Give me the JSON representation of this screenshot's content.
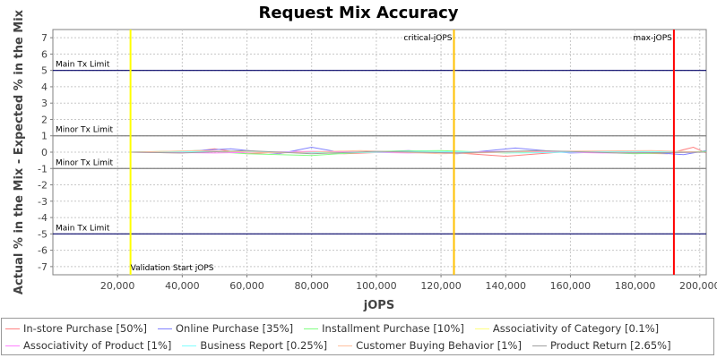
{
  "chart_data": {
    "type": "line",
    "title": "Request Mix Accuracy",
    "xlabel": "jOPS",
    "ylabel": "Actual % in the Mix - Expected % in the Mix",
    "xlim": [
      0,
      202000
    ],
    "ylim": [
      -7.5,
      7.5
    ],
    "x_ticks": [
      "20,000",
      "40,000",
      "60,000",
      "80,000",
      "100,000",
      "120,000",
      "140,000",
      "160,000",
      "180,000",
      "200,000"
    ],
    "x_tick_values": [
      20000,
      40000,
      60000,
      80000,
      100000,
      120000,
      140000,
      160000,
      180000,
      200000
    ],
    "y_ticks": [
      "7",
      "6",
      "5",
      "4",
      "3",
      "2",
      "1",
      "0",
      "-1",
      "-2",
      "-3",
      "-4",
      "-5",
      "-6",
      "-7"
    ],
    "y_tick_values": [
      7,
      6,
      5,
      4,
      3,
      2,
      1,
      0,
      -1,
      -2,
      -3,
      -4,
      -5,
      -6,
      -7
    ],
    "grid": true,
    "legend_position": "bottom",
    "horizontal_lines": [
      {
        "label": "Main Tx Limit",
        "y": 5,
        "color": "#000066"
      },
      {
        "label": "Minor Tx Limit",
        "y": 1,
        "color": "#808080"
      },
      {
        "label": "Minor Tx Limit",
        "y": -1,
        "color": "#808080"
      },
      {
        "label": "Main Tx Limit",
        "y": -5,
        "color": "#000066"
      }
    ],
    "vertical_lines": [
      {
        "label": "Validation Start jOPS",
        "x": 24000,
        "color": "#ffff00",
        "label_pos": "bottom"
      },
      {
        "label": "critical-jOPS",
        "x": 124000,
        "color": "#ffc000",
        "label_pos": "top"
      },
      {
        "label": "max-jOPS",
        "x": 192000,
        "color": "#ff0000",
        "label_pos": "top"
      }
    ],
    "series": [
      {
        "name": "In-store Purchase [50%]",
        "color": "#ff8080",
        "x": [
          24000,
          40000,
          50000,
          60000,
          75000,
          90000,
          110000,
          125000,
          140000,
          160000,
          175000,
          190000,
          198000,
          202000
        ],
        "y": [
          0,
          -0.05,
          0.2,
          -0.1,
          0.05,
          -0.1,
          0.05,
          -0.05,
          -0.25,
          0.05,
          -0.05,
          -0.1,
          0.3,
          -0.05
        ]
      },
      {
        "name": "Online Purchase [35%]",
        "color": "#8080ff",
        "x": [
          24000,
          40000,
          55000,
          70000,
          80000,
          90000,
          110000,
          125000,
          143000,
          160000,
          180000,
          195000,
          202000
        ],
        "y": [
          0,
          0.05,
          0.2,
          -0.1,
          0.3,
          -0.05,
          0.1,
          -0.1,
          0.25,
          -0.05,
          0.05,
          -0.15,
          0.1
        ]
      },
      {
        "name": "Installment Purchase [10%]",
        "color": "#80ff80",
        "x": [
          24000,
          45000,
          60000,
          80000,
          100000,
          120000,
          140000,
          160000,
          180000,
          202000
        ],
        "y": [
          0,
          0.1,
          -0.1,
          -0.2,
          0.05,
          0.1,
          -0.05,
          0.05,
          -0.1,
          0.05
        ]
      },
      {
        "name": "Associativity of Category [0.1%]",
        "color": "#ffff80",
        "x": [
          24000,
          60000,
          100000,
          140000,
          180000,
          202000
        ],
        "y": [
          0,
          0.02,
          -0.02,
          0.02,
          -0.02,
          0
        ]
      },
      {
        "name": "Associativity of Product [1%]",
        "color": "#ff80ff",
        "x": [
          24000,
          50000,
          80000,
          110000,
          140000,
          170000,
          202000
        ],
        "y": [
          0,
          -0.05,
          0.05,
          -0.05,
          0.05,
          -0.05,
          0
        ]
      },
      {
        "name": "Business Report [0.25%]",
        "color": "#80ffff",
        "x": [
          24000,
          55000,
          85000,
          115000,
          145000,
          175000,
          202000
        ],
        "y": [
          0,
          0.05,
          -0.05,
          0.05,
          -0.05,
          0.05,
          0
        ]
      },
      {
        "name": "Customer Buying Behavior [1%]",
        "color": "#ffc0a0",
        "x": [
          24000,
          45000,
          70000,
          95000,
          120000,
          150000,
          185000,
          202000
        ],
        "y": [
          0,
          0.1,
          -0.05,
          0.1,
          -0.1,
          0.05,
          0.1,
          0
        ]
      },
      {
        "name": "Product Return [2.65%]",
        "color": "#a0a0a0",
        "x": [
          24000,
          40000,
          60000,
          80000,
          100000,
          125000,
          150000,
          175000,
          202000
        ],
        "y": [
          0,
          -0.05,
          0.1,
          -0.1,
          0.05,
          -0.05,
          0.1,
          -0.05,
          0
        ]
      }
    ]
  }
}
